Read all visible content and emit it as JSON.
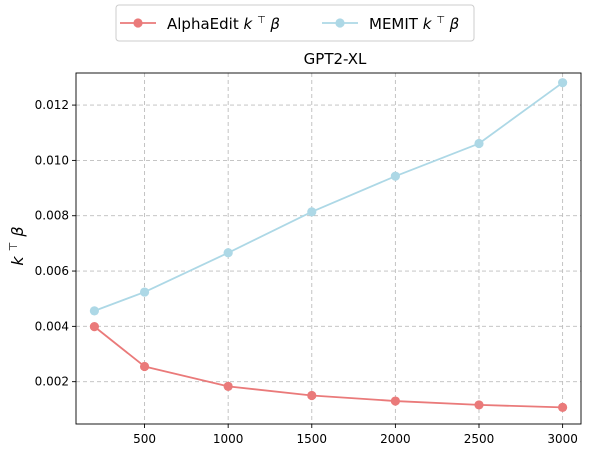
{
  "chart_data": {
    "type": "line",
    "title": "GPT2-XL",
    "xlabel": "",
    "ylabel": "k ⊤ β",
    "x": [
      200,
      500,
      1000,
      1500,
      2000,
      2500,
      3000
    ],
    "xticks": [
      500,
      1000,
      1500,
      2000,
      2500,
      3000
    ],
    "xlim": [
      90,
      3110
    ],
    "yticks": [
      0.002,
      0.004,
      0.006,
      0.008,
      0.01,
      0.012
    ],
    "ytick_labels": [
      "0.002",
      "0.004",
      "0.006",
      "0.008",
      "0.010",
      "0.012"
    ],
    "ylim": [
      0.00047,
      0.01316
    ],
    "grid": true,
    "legend_position": "top-center, outside",
    "series": [
      {
        "name": "AlphaEdit k ⊤ β",
        "name_prefix": "AlphaEdit",
        "color": "#ea7a7a",
        "values": [
          0.00399,
          0.00255,
          0.00183,
          0.0015,
          0.0013,
          0.00116,
          0.00107
        ]
      },
      {
        "name": "MEMIT k ⊤ β",
        "name_prefix": "MEMIT",
        "color": "#add8e6",
        "values": [
          0.00456,
          0.00524,
          0.00666,
          0.00814,
          0.00943,
          0.01061,
          0.01281
        ]
      }
    ]
  }
}
